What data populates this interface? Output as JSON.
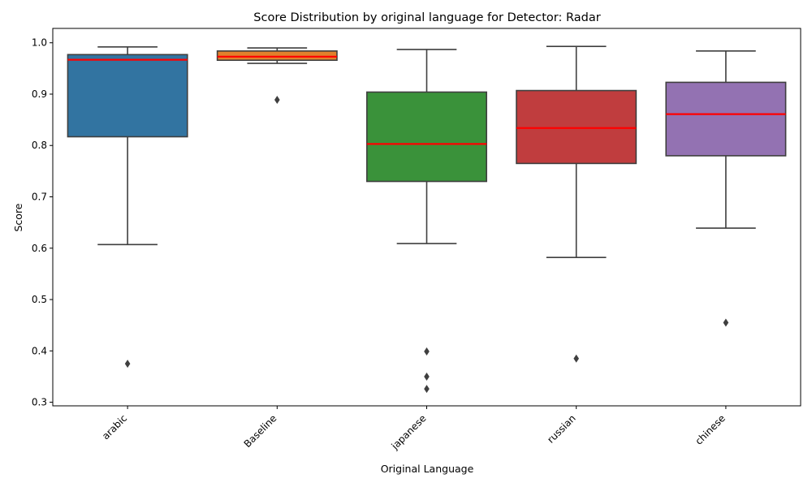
{
  "chart_data": {
    "type": "box",
    "title": "Score Distribution by original language for Detector: Radar",
    "xlabel": "Original Language",
    "ylabel": "Score",
    "ylim": [
      0.293,
      1.028
    ],
    "yticks": [
      "0.3",
      "0.4",
      "0.5",
      "0.6",
      "0.7",
      "0.8",
      "0.9",
      "1.0"
    ],
    "grid": false,
    "legend": "none",
    "median_color": "#ff0000",
    "categories": [
      "arabic",
      "Baseline",
      "japanese",
      "russian",
      "chinese"
    ],
    "boxes": [
      {
        "category": "arabic",
        "color": "#3274a1",
        "whisker_low": 0.607,
        "q1": 0.817,
        "median": 0.967,
        "q3": 0.977,
        "whisker_high": 0.992,
        "outliers": [
          0.375
        ]
      },
      {
        "category": "Baseline",
        "color": "#e1812c",
        "whisker_low": 0.96,
        "q1": 0.966,
        "median": 0.973,
        "q3": 0.984,
        "whisker_high": 0.99,
        "outliers": [
          0.889
        ]
      },
      {
        "category": "japanese",
        "color": "#3a923a",
        "whisker_low": 0.609,
        "q1": 0.73,
        "median": 0.803,
        "q3": 0.904,
        "whisker_high": 0.987,
        "outliers": [
          0.399,
          0.35,
          0.326
        ]
      },
      {
        "category": "russian",
        "color": "#c03d3e",
        "whisker_low": 0.582,
        "q1": 0.765,
        "median": 0.834,
        "q3": 0.907,
        "whisker_high": 0.993,
        "outliers": [
          0.385
        ]
      },
      {
        "category": "chinese",
        "color": "#9372b2",
        "whisker_low": 0.639,
        "q1": 0.78,
        "median": 0.861,
        "q3": 0.923,
        "whisker_high": 0.984,
        "outliers": [
          0.455
        ]
      }
    ]
  }
}
